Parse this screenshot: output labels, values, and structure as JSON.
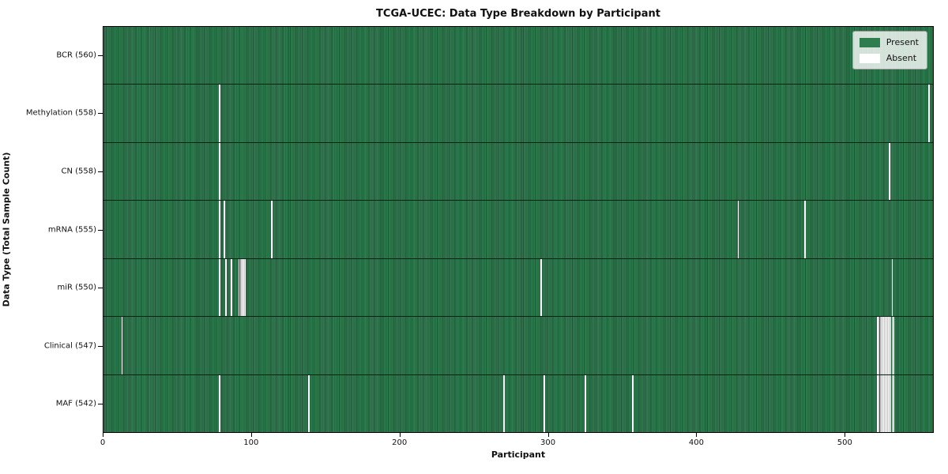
{
  "chart_data": {
    "type": "heatmap",
    "title": "TCGA-UCEC: Data Type Breakdown by Participant",
    "xlabel": "Participant",
    "ylabel": "Data Type (Total Sample Count)",
    "n_participants": 560,
    "x_ticks": [
      0,
      100,
      200,
      300,
      400,
      500
    ],
    "grid": false,
    "legend_position": "upper right",
    "colors": {
      "present": "#2e7d4f",
      "absent": "#ffffff"
    },
    "legend": [
      {
        "label": "Present",
        "color": "#2e7d4f"
      },
      {
        "label": "Absent",
        "color": "#ffffff"
      }
    ],
    "rows": [
      {
        "label": "BCR (560)",
        "name": "BCR",
        "count": 560,
        "absent": []
      },
      {
        "label": "Methylation (558)",
        "name": "Methylation",
        "count": 558,
        "absent": [
          78,
          557
        ]
      },
      {
        "label": "CN (558)",
        "name": "CN",
        "count": 558,
        "absent": [
          78,
          530
        ]
      },
      {
        "label": "mRNA (555)",
        "name": "mRNA",
        "count": 555,
        "absent": [
          78,
          81,
          113,
          428,
          473
        ]
      },
      {
        "label": "miR (550)",
        "name": "miR",
        "count": 550,
        "absent": [
          78,
          82,
          86,
          91,
          92,
          93,
          94,
          95,
          295,
          532
        ]
      },
      {
        "label": "Clinical (547)",
        "name": "Clinical",
        "count": 547,
        "absent": [
          12,
          522,
          523,
          524,
          525,
          526,
          527,
          528,
          529,
          530,
          531,
          532,
          533
        ]
      },
      {
        "label": "MAF (542)",
        "name": "MAF",
        "count": 542,
        "absent": [
          78,
          138,
          270,
          297,
          325,
          357,
          522,
          523,
          524,
          525,
          526,
          527,
          528,
          529,
          530,
          531,
          532,
          533
        ]
      }
    ]
  }
}
